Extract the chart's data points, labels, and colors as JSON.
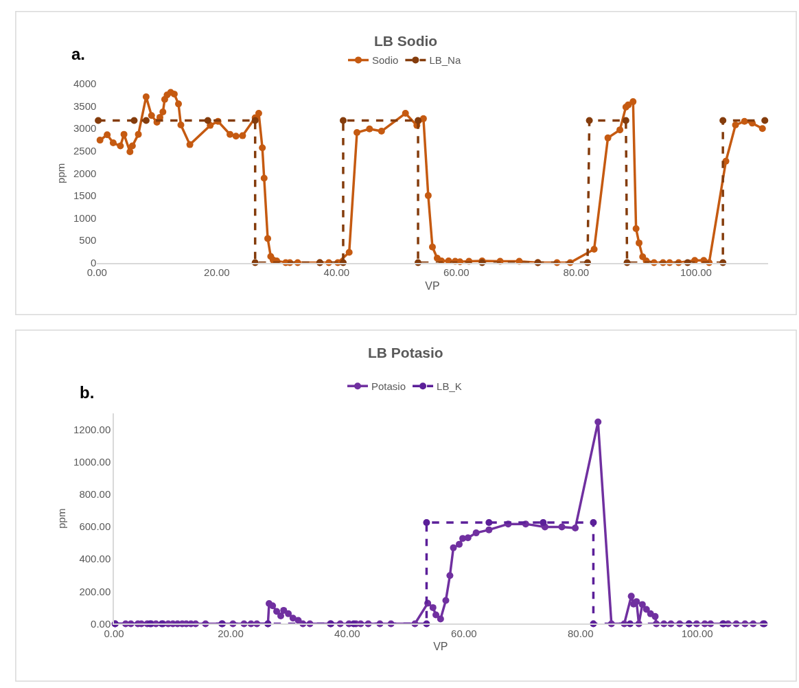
{
  "chart_data": [
    {
      "type": "line",
      "title": "LB Sodio",
      "xlabel": "VP",
      "ylabel": "ppm",
      "annotations": [
        "a."
      ],
      "legend": "top",
      "grid": false,
      "marker": "circle",
      "xlim": [
        0,
        112
      ],
      "xticks": [
        {
          "value": 0,
          "label": "0.00"
        },
        {
          "value": 20,
          "label": "20.00"
        },
        {
          "value": 40,
          "label": "40.00"
        },
        {
          "value": 60,
          "label": "60.00"
        },
        {
          "value": 80,
          "label": "80.00"
        },
        {
          "value": 100,
          "label": "100.00"
        }
      ],
      "ylim": [
        0,
        4000
      ],
      "yticks": [
        0,
        500,
        1000,
        1500,
        2000,
        2500,
        3000,
        3500,
        4000
      ],
      "series": [
        {
          "name": "Sodio",
          "color": "#c55a11",
          "line_style": "solid",
          "x": [
            0.5,
            1.7,
            2.7,
            3.9,
            4.5,
            5.5,
            5.9,
            6.9,
            8.2,
            9.1,
            10.0,
            10.5,
            11.0,
            11.3,
            11.7,
            12.3,
            12.9,
            13.6,
            14.0,
            15.5,
            18.9,
            20.2,
            22.2,
            23.2,
            24.3,
            26.4,
            27.0,
            27.6,
            27.9,
            28.5,
            29.0,
            29.4,
            30.0,
            31.5,
            32.2,
            33.5,
            37.2,
            38.7,
            40.2,
            42.1,
            43.4,
            45.5,
            47.5,
            51.5,
            53.4,
            54.5,
            55.3,
            56.0,
            56.8,
            57.5,
            58.7,
            59.8,
            60.6,
            62.1,
            64.3,
            67.3,
            70.5,
            73.6,
            76.8,
            79.0,
            83.0,
            85.3,
            87.3,
            88.3,
            88.7,
            89.5,
            90.0,
            90.5,
            91.1,
            91.7,
            93.0,
            94.5,
            95.6,
            97.1,
            99.8,
            101.3,
            102.2,
            105.0,
            106.6,
            108.1,
            109.4,
            111.1
          ],
          "values": [
            2740,
            2860,
            2680,
            2610,
            2870,
            2480,
            2610,
            2870,
            3710,
            3290,
            3140,
            3250,
            3370,
            3650,
            3750,
            3810,
            3770,
            3550,
            3080,
            2640,
            3070,
            3160,
            2870,
            2830,
            2840,
            3240,
            3340,
            2570,
            1890,
            540,
            140,
            60,
            40,
            0,
            0,
            0,
            0,
            0,
            0,
            230,
            2910,
            2990,
            2940,
            3340,
            3070,
            3220,
            1500,
            350,
            100,
            40,
            40,
            30,
            20,
            30,
            40,
            30,
            30,
            0,
            0,
            0,
            300,
            2790,
            2970,
            3480,
            3530,
            3600,
            760,
            440,
            130,
            40,
            0,
            0,
            0,
            0,
            50,
            50,
            0,
            2270,
            3080,
            3160,
            3120,
            3000
          ]
        },
        {
          "name": "LB_Na",
          "color": "#843c0c",
          "line_style": "dashed",
          "x": [
            0.2,
            6.2,
            8.2,
            18.5,
            26.4,
            26.4,
            37.2,
            41.1,
            41.1,
            53.6,
            53.6,
            64.3,
            73.6,
            81.9,
            82.2,
            88.3,
            88.5,
            98.6,
            104.5,
            104.5,
            111.5
          ],
          "values": [
            3180,
            3180,
            3180,
            3180,
            3180,
            0,
            0,
            0,
            3180,
            3180,
            0,
            0,
            0,
            0,
            3180,
            3180,
            0,
            0,
            0,
            3180,
            3180
          ]
        }
      ]
    },
    {
      "type": "line",
      "title": "LB Potasio",
      "xlabel": "VP",
      "ylabel": "ppm",
      "annotations": [
        "b."
      ],
      "legend": "top",
      "grid": false,
      "marker": "circle",
      "xlim": [
        0,
        112
      ],
      "xticks": [
        {
          "value": 0,
          "label": "0.00"
        },
        {
          "value": 20,
          "label": "20.00"
        },
        {
          "value": 40,
          "label": "40.00"
        },
        {
          "value": 60,
          "label": "60.00"
        },
        {
          "value": 80,
          "label": "80.00"
        },
        {
          "value": 100,
          "label": "100.00"
        }
      ],
      "ylim": [
        0,
        1300
      ],
      "yticks": [
        {
          "value": 0,
          "label": "0.00"
        },
        {
          "value": 200,
          "label": "200.00"
        },
        {
          "value": 400,
          "label": "400.00"
        },
        {
          "value": 600,
          "label": "600.00"
        },
        {
          "value": 800,
          "label": "800.00"
        },
        {
          "value": 1000,
          "label": "1000.00"
        },
        {
          "value": 1200,
          "label": "1200.00"
        }
      ],
      "series": [
        {
          "name": "Potasio",
          "color": "#7030a0",
          "line_style": "solid",
          "x": [
            0.2,
            2.0,
            2.9,
            4.1,
            4.7,
            5.7,
            6.4,
            7.2,
            8.4,
            9.3,
            10.1,
            10.9,
            11.7,
            12.4,
            13.2,
            14.0,
            15.7,
            18.6,
            20.4,
            22.3,
            23.5,
            24.5,
            26.4,
            26.6,
            27.2,
            27.9,
            28.6,
            29.1,
            29.9,
            30.7,
            31.6,
            32.4,
            33.6,
            37.1,
            38.8,
            40.3,
            41.5,
            42.3,
            43.6,
            45.6,
            47.5,
            51.6,
            53.8,
            54.7,
            55.2,
            56.0,
            56.9,
            57.6,
            58.2,
            59.2,
            59.8,
            60.7,
            62.1,
            64.3,
            67.6,
            70.6,
            73.9,
            76.8,
            79.1,
            83.0,
            85.3,
            87.5,
            88.7,
            89.1,
            89.6,
            90.0,
            90.6,
            91.3,
            92.0,
            92.8,
            93.0,
            94.3,
            95.5,
            97.0,
            98.6,
            99.9,
            101.3,
            102.3,
            104.4,
            105.3,
            106.7,
            108.2,
            109.6,
            111.3
          ],
          "values": [
            0,
            0,
            0,
            0,
            0,
            0,
            0,
            0,
            0,
            0,
            0,
            0,
            0,
            0,
            0,
            0,
            0,
            0,
            0,
            0,
            0,
            0,
            0,
            125,
            111,
            76,
            49,
            83,
            62,
            35,
            21,
            0,
            0,
            0,
            0,
            0,
            0,
            0,
            0,
            0,
            0,
            0,
            127,
            100,
            55,
            30,
            144,
            298,
            469,
            491,
            527,
            531,
            561,
            580,
            616,
            616,
            598,
            598,
            591,
            1246,
            0,
            0,
            170,
            122,
            137,
            0,
            119,
            89,
            62,
            45,
            0,
            0,
            0,
            0,
            0,
            0,
            0,
            0,
            0,
            0,
            0,
            0,
            0,
            0
          ]
        },
        {
          "name": "LB_K",
          "color": "#5b1f99",
          "line_style": "dashed",
          "x": [
            0.2,
            6.2,
            8.2,
            18.5,
            26.4,
            37.2,
            41.1,
            53.6,
            53.6,
            64.3,
            73.6,
            82.2,
            82.2,
            88.5,
            98.6,
            104.5,
            111.5
          ],
          "values": [
            0,
            0,
            0,
            0,
            0,
            0,
            0,
            0,
            625,
            625,
            625,
            625,
            0,
            0,
            0,
            0,
            0
          ]
        }
      ]
    }
  ]
}
